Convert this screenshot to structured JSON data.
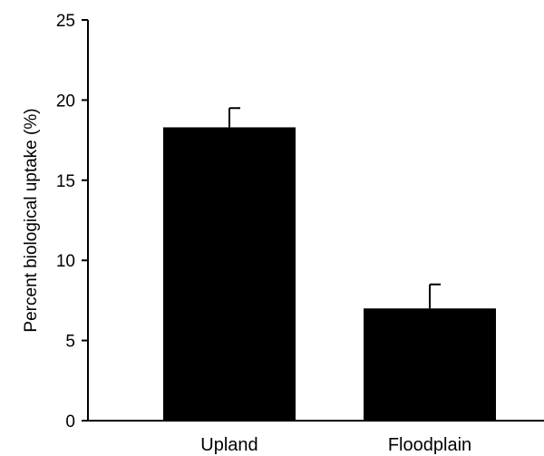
{
  "chart_data": {
    "type": "bar",
    "categories": [
      "Upland",
      "Floodplain"
    ],
    "values": [
      18.3,
      7.0
    ],
    "errors": [
      1.2,
      1.5
    ],
    "ylabel": "Percent biological uptake (%)",
    "xlabel": "",
    "ylim": [
      0,
      25
    ],
    "yticks": [
      "0",
      "5",
      "10",
      "15",
      "20",
      "25"
    ],
    "bar_color": "#000000",
    "grid": false
  }
}
